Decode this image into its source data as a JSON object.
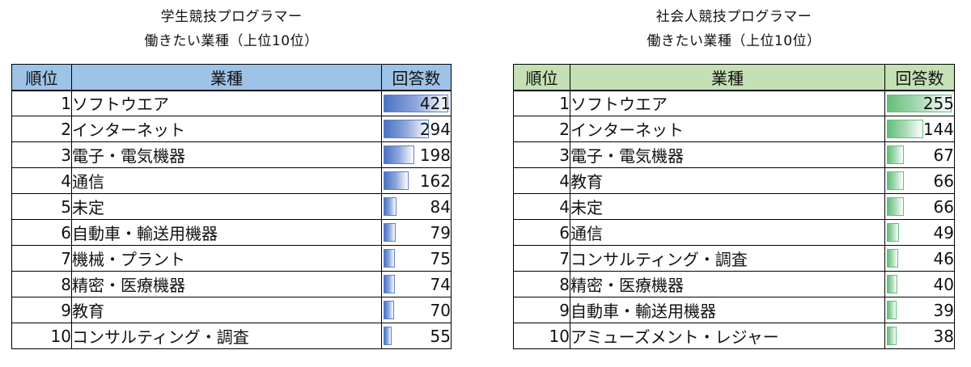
{
  "chart_data": [
    {
      "type": "table",
      "title_line1": "学生競技プログラマー",
      "title_line2": "働きたい業種（上位10位）",
      "headers": {
        "rank": "順位",
        "industry": "業種",
        "count": "回答数"
      },
      "bar_color": "#4a72c4",
      "header_color": "#9dc3e6",
      "rows": [
        {
          "rank": "1",
          "industry": "ソフトウエア",
          "count": 421
        },
        {
          "rank": "2",
          "industry": "インターネット",
          "count": 294
        },
        {
          "rank": "3",
          "industry": "電子・電気機器",
          "count": 198
        },
        {
          "rank": "4",
          "industry": "通信",
          "count": 162
        },
        {
          "rank": "5",
          "industry": "未定",
          "count": 84
        },
        {
          "rank": "6",
          "industry": "自動車・輸送用機器",
          "count": 79
        },
        {
          "rank": "7",
          "industry": "機械・プラント",
          "count": 75
        },
        {
          "rank": "8",
          "industry": "精密・医療機器",
          "count": 74
        },
        {
          "rank": "9",
          "industry": "教育",
          "count": 70
        },
        {
          "rank": "10",
          "industry": "コンサルティング・調査",
          "count": 55
        }
      ]
    },
    {
      "type": "table",
      "title_line1": "社会人競技プログラマー",
      "title_line2": "働きたい業種（上位10位）",
      "headers": {
        "rank": "順位",
        "industry": "業種",
        "count": "回答数"
      },
      "bar_color": "#63be7b",
      "header_color": "#c5e0b4",
      "rows": [
        {
          "rank": "1",
          "industry": "ソフトウエア",
          "count": 255
        },
        {
          "rank": "2",
          "industry": "インターネット",
          "count": 144
        },
        {
          "rank": "3",
          "industry": "電子・電気機器",
          "count": 67
        },
        {
          "rank": "4",
          "industry": "教育",
          "count": 66
        },
        {
          "rank": "4",
          "industry": "未定",
          "count": 66
        },
        {
          "rank": "6",
          "industry": "通信",
          "count": 49
        },
        {
          "rank": "7",
          "industry": "コンサルティング・調査",
          "count": 46
        },
        {
          "rank": "8",
          "industry": "精密・医療機器",
          "count": 40
        },
        {
          "rank": "9",
          "industry": "自動車・輸送用機器",
          "count": 39
        },
        {
          "rank": "10",
          "industry": "アミューズメント・レジャー",
          "count": 38
        }
      ]
    }
  ]
}
